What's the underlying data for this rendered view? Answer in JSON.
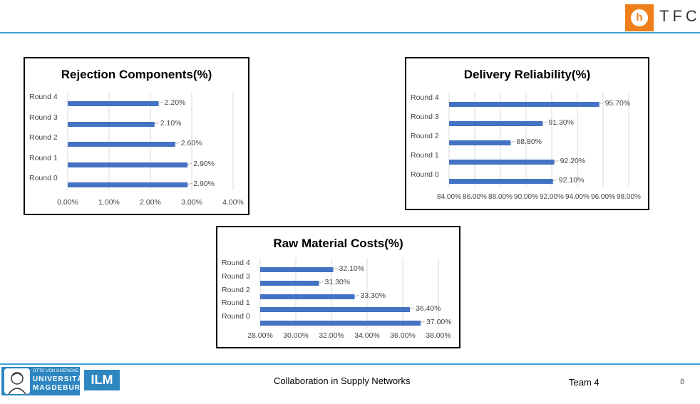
{
  "header": {
    "brand": "TFC",
    "logo_icon": "tfc-logo-icon",
    "accent": "#3aa3d6",
    "logo_color": "#ef7f1a"
  },
  "footer": {
    "title": "Collaboration in Supply Networks",
    "team": "Team 4",
    "page": "8",
    "uni_logo_top": "OTTO VON GUERICKE",
    "uni_logo_line1": "UNIVERSITÄT",
    "uni_logo_line2": "MAGDEBURG",
    "ilm": "ILM"
  },
  "chart_data": [
    {
      "type": "bar",
      "orientation": "horizontal",
      "title": "Rejection Components(%)",
      "categories": [
        "Round 4",
        "Round 3",
        "Round 2",
        "Round 1",
        "Round 0"
      ],
      "values": [
        2.2,
        2.1,
        2.6,
        2.9,
        2.9
      ],
      "labels": [
        "2.20%",
        "2.10%",
        "2.60%",
        "2.90%",
        "2.90%"
      ],
      "xlim": [
        0,
        4
      ],
      "ticks": [
        0,
        1,
        2,
        3,
        4
      ],
      "tick_labels": [
        "0.00%",
        "1.00%",
        "2.00%",
        "3.00%",
        "4.00%"
      ],
      "grid": true,
      "bar_color": "#4472c4"
    },
    {
      "type": "bar",
      "orientation": "horizontal",
      "title": "Delivery Reliability(%)",
      "categories": [
        "Round 4",
        "Round 3",
        "Round 2",
        "Round 1",
        "Round 0"
      ],
      "values": [
        95.7,
        91.3,
        88.8,
        92.2,
        92.1
      ],
      "labels": [
        "95.70%",
        "91.30%",
        "88.80%",
        "92.20%",
        "92.10%"
      ],
      "xlim": [
        84,
        98
      ],
      "ticks": [
        84,
        86,
        88,
        90,
        92,
        94,
        96,
        98
      ],
      "tick_labels": [
        "84.00%",
        "86.00%",
        "88.00%",
        "90.00%",
        "92.00%",
        "94.00%",
        "96.00%",
        "98.00%"
      ],
      "grid": true,
      "bar_color": "#4472c4"
    },
    {
      "type": "bar",
      "orientation": "horizontal",
      "title": "Raw Material Costs(%)",
      "categories": [
        "Round 4",
        "Round 3",
        "Round 2",
        "Round 1",
        "Round 0"
      ],
      "values": [
        32.1,
        31.3,
        33.3,
        36.4,
        37.0
      ],
      "labels": [
        "32.10%",
        "31.30%",
        "33.30%",
        "36.40%",
        "37.00%"
      ],
      "xlim": [
        28,
        38
      ],
      "ticks": [
        28,
        30,
        32,
        34,
        36,
        38
      ],
      "tick_labels": [
        "28.00%",
        "30.00%",
        "32.00%",
        "34.00%",
        "36.00%",
        "38.00%"
      ],
      "grid": true,
      "bar_color": "#4472c4"
    }
  ]
}
